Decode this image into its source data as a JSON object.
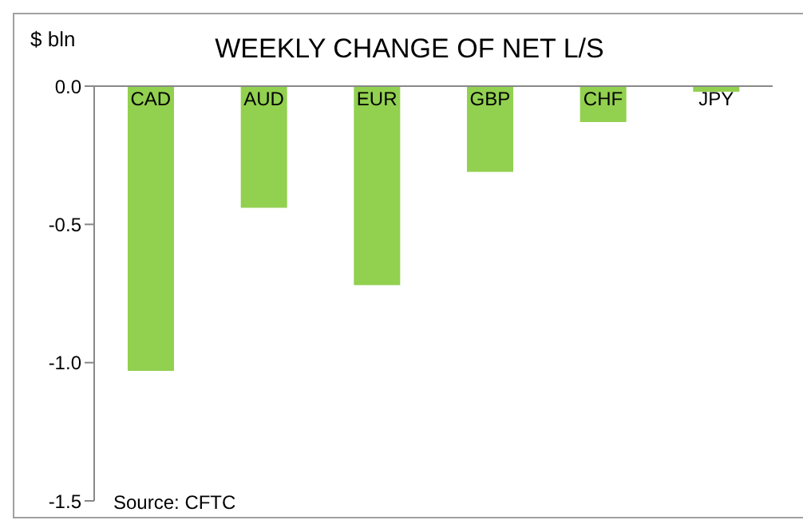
{
  "chart_data": {
    "type": "bar",
    "title": "WEEKLY CHANGE OF NET L/S",
    "ylabel": "$ bln",
    "categories": [
      "CAD",
      "AUD",
      "EUR",
      "GBP",
      "CHF",
      "JPY"
    ],
    "values": [
      -1.03,
      -0.44,
      -0.72,
      -0.31,
      -0.13,
      -0.02
    ],
    "color": "#92d050",
    "ylim": [
      -1.5,
      0
    ],
    "yticks": [
      {
        "value": -1.5,
        "label": "-1.5"
      },
      {
        "value": -1.0,
        "label": "-1.0"
      },
      {
        "value": -0.5,
        "label": "-0.5"
      },
      {
        "value": 0,
        "label": "0.0"
      }
    ],
    "grid": false,
    "annotations": [
      "Source: CFTC"
    ]
  }
}
